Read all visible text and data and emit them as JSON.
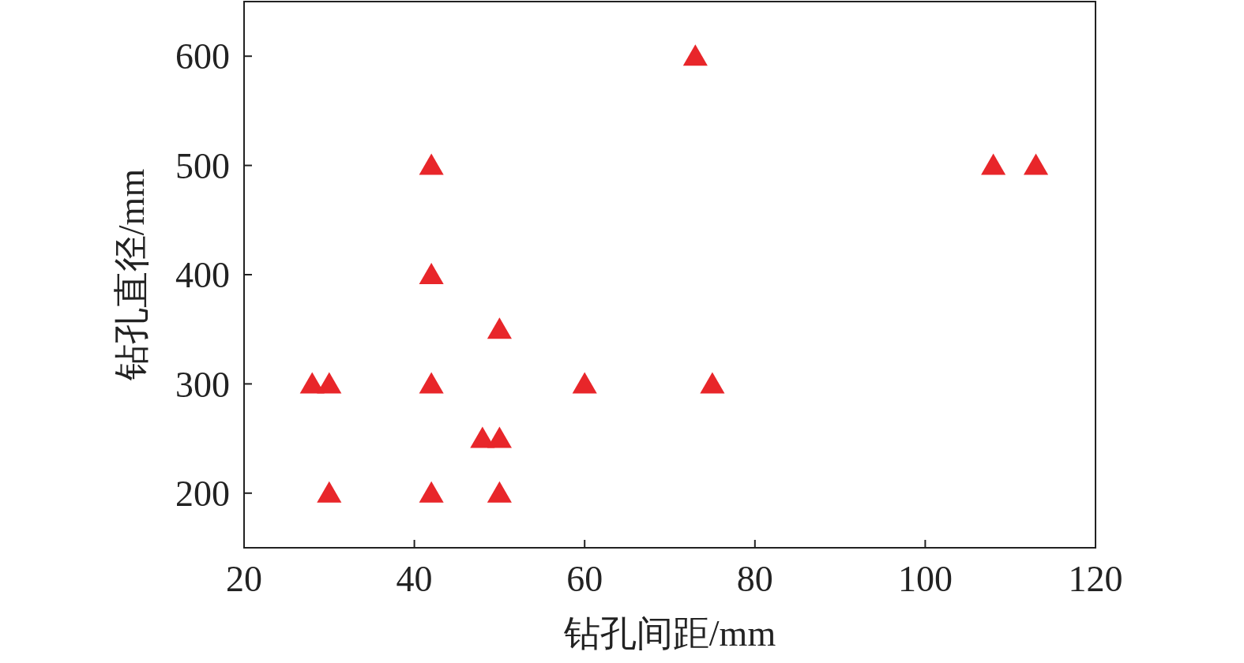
{
  "chart_data": {
    "type": "scatter",
    "xlabel": "钻孔间距/mm",
    "ylabel": "钻孔直径/mm",
    "x": [
      28,
      30,
      30,
      42,
      42,
      42,
      42,
      48,
      50,
      50,
      50,
      60,
      73,
      75,
      108,
      113
    ],
    "series": [
      {
        "color": "#e8262a",
        "values": [
          300,
          300,
          200,
          500,
          400,
          300,
          200,
          250,
          350,
          250,
          200,
          300,
          600,
          300,
          500,
          500
        ]
      }
    ],
    "xlim": [
      20,
      120
    ],
    "xticks": [
      20,
      40,
      60,
      80,
      100,
      120
    ],
    "ylim": [
      150,
      650
    ],
    "yticks": [
      200,
      300,
      400,
      500,
      600
    ],
    "marker": "triangle",
    "grid": false
  }
}
